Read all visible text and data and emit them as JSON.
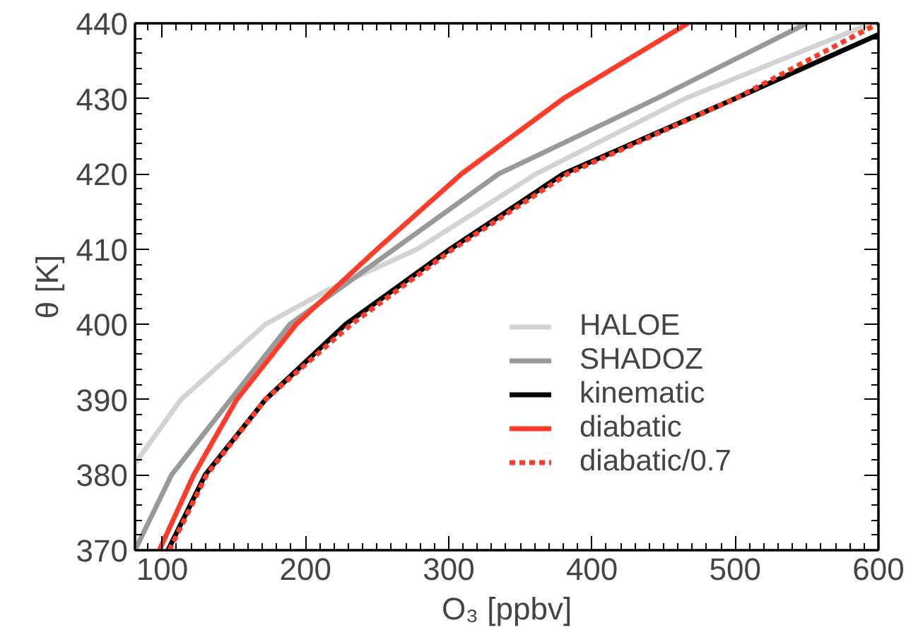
{
  "chart_data": {
    "type": "line",
    "xlabel": "O₃ [ppbv]",
    "ylabel": "θ [K]",
    "xlim": [
      81,
      600
    ],
    "ylim": [
      370,
      440
    ],
    "xticks": [
      100,
      200,
      300,
      400,
      500,
      600
    ],
    "yticks": [
      370,
      380,
      390,
      400,
      410,
      420,
      430,
      440
    ],
    "grid": false,
    "legend": "right",
    "marker": "none",
    "series": [
      {
        "name": "HALOE",
        "color": "#d3d3d3",
        "x": [
          81,
          113,
          172,
          215,
          278,
          361,
          465,
          595
        ],
        "values": [
          381.5,
          390,
          400,
          404.5,
          410,
          420,
          430,
          440
        ]
      },
      {
        "name": "SHADOZ",
        "color": "#999999",
        "x": [
          81,
          106.5,
          189,
          262,
          335,
          445,
          550
        ],
        "values": [
          370,
          380,
          400,
          410,
          420,
          430,
          440
        ]
      },
      {
        "name": "kinematic",
        "color": "#000000",
        "x": [
          104,
          130,
          172,
          228,
          301,
          380,
          500,
          600
        ],
        "values": [
          370,
          380,
          390,
          400,
          410,
          420,
          430,
          438.5
        ]
      },
      {
        "name": "diabatic",
        "color": "#ff3b2a",
        "x": [
          98,
          122,
          152,
          193.5,
          250,
          309,
          380,
          467
        ],
        "values": [
          370,
          380,
          390,
          400,
          410,
          420,
          430,
          440
        ]
      },
      {
        "name": "diabatic/0.7",
        "color": "#ff3b2a",
        "line_style": "dashed",
        "x": [
          105,
          131,
          172,
          232,
          303,
          383,
          500,
          600
        ],
        "values": [
          370,
          380,
          390,
          400,
          410,
          420,
          430,
          440
        ]
      }
    ]
  }
}
